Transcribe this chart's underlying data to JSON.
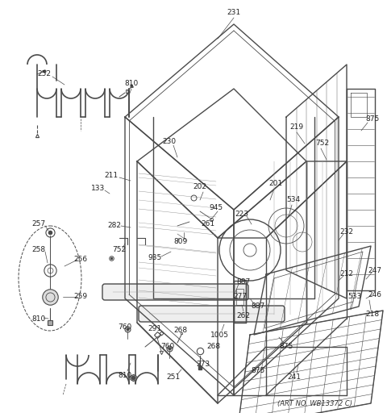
{
  "art_no": "(ART NO. WB13372 C)",
  "bg": "#f5f5f5",
  "lc": "#4a4a4a",
  "fig_width": 4.8,
  "fig_height": 5.12,
  "dpi": 100
}
